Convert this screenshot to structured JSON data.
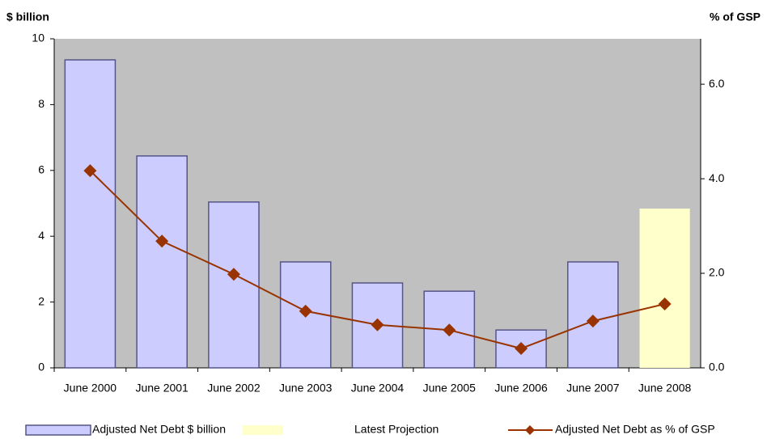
{
  "chart_data": {
    "type": "bar_line",
    "y_label": "$ billion",
    "y2_label": "% of GSP",
    "categories": [
      "June 2000",
      "June 2001",
      "June 2002",
      "June 2003",
      "June 2004",
      "June 2005",
      "June 2006",
      "June 2007",
      "June 2008"
    ],
    "series": [
      {
        "name": "Adjusted Net Debt $ billion",
        "color": "#ccccff",
        "type": "bar",
        "values": [
          9.36,
          6.44,
          5.04,
          3.22,
          2.58,
          2.33,
          1.15,
          3.22,
          null
        ]
      },
      {
        "name": "Latest Projection",
        "color": "#ffffcc",
        "type": "bar",
        "values": [
          null,
          null,
          null,
          null,
          null,
          null,
          null,
          null,
          4.84
        ]
      },
      {
        "name": "Adjusted Net Debt as % of GSP",
        "color": "#993300",
        "type": "line",
        "axis": "y2",
        "values": [
          4.17,
          2.68,
          1.98,
          1.2,
          0.91,
          0.8,
          0.41,
          0.99,
          1.35
        ]
      }
    ],
    "ylim": [
      0,
      10
    ],
    "yticks": [
      0,
      2,
      4,
      6,
      8,
      10
    ],
    "y2lim": [
      0,
      6.96
    ],
    "y2ticks": [
      {
        "value": 0,
        "label": "0.0"
      },
      {
        "value": 2,
        "label": "2.0"
      },
      {
        "value": 4,
        "label": "4.0"
      },
      {
        "value": 6,
        "label": "6.0"
      }
    ],
    "plot_background": "#c0c0c0"
  }
}
